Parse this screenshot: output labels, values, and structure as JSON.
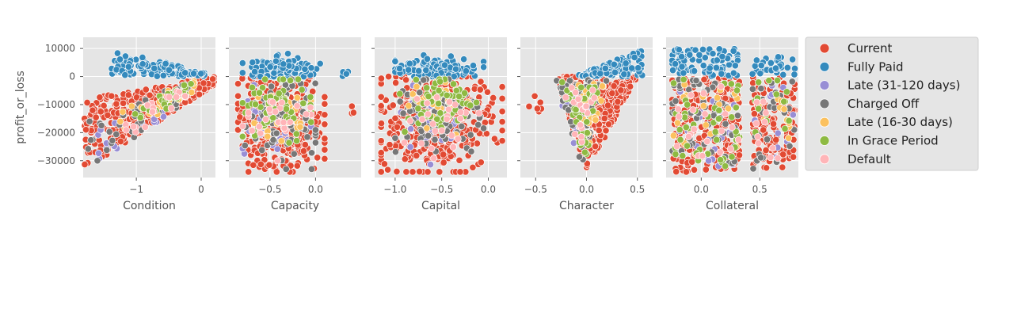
{
  "chart_data": {
    "type": "scatter",
    "title": "",
    "ylabel": "profit_or_loss",
    "ylim": [
      -36000,
      14000
    ],
    "yticks": [
      10000,
      0,
      -10000,
      -20000,
      -30000
    ],
    "ytick_labels": [
      "10000",
      "0",
      "−10000",
      "−20000",
      "−30000"
    ],
    "grid": true,
    "legend_position": "right",
    "series": [
      {
        "name": "Current",
        "color": "#E24A33"
      },
      {
        "name": "Fully Paid",
        "color": "#348ABD"
      },
      {
        "name": "Late (31-120 days)",
        "color": "#988ED5"
      },
      {
        "name": "Charged Off",
        "color": "#777777"
      },
      {
        "name": "Late (16-30 days)",
        "color": "#FBC15E"
      },
      {
        "name": "In Grace Period",
        "color": "#8EBA42"
      },
      {
        "name": "Default",
        "color": "#FFB5B8"
      }
    ],
    "panels": [
      {
        "xlabel": "Condition",
        "xlim": [
          -1.82,
          0.22
        ],
        "xticks": [
          -1,
          0
        ],
        "xtick_labels": [
          "−1",
          "0"
        ],
        "clusters": [
          {
            "series": "Fully Paid",
            "count": 120,
            "x_range": [
              -1.75,
              0.05
            ],
            "y_range": [
              0,
              11000
            ],
            "shape": "cap",
            "anchor_x": -1.4,
            "anchor_y": 9000,
            "end_x": 0.05,
            "end_y": 1500
          },
          {
            "series": "Current",
            "count": 380,
            "x_range": [
              -1.8,
              0.2
            ],
            "y_range": [
              -33000,
              0
            ],
            "shape": "wedge",
            "low_left": -33000,
            "high_left": -8000,
            "low_right": -3000,
            "high_right": 0
          },
          {
            "series": "Charged Off",
            "count": 45,
            "x_range": [
              -1.75,
              -0.2
            ],
            "y_range": [
              -33000,
              -3000
            ],
            "shape": "wedge",
            "low_left": -33000,
            "high_left": -15000,
            "low_right": -10000,
            "high_right": -2000
          },
          {
            "series": "In Grace Period",
            "count": 30,
            "x_range": [
              -1.1,
              -0.1
            ],
            "y_range": [
              -20000,
              -1000
            ],
            "shape": "wedge",
            "low_left": -20000,
            "high_left": -12000,
            "low_right": -5000,
            "high_right": -1000
          },
          {
            "series": "Late (16-30 days)",
            "count": 22,
            "x_range": [
              -1.3,
              -0.1
            ],
            "y_range": [
              -22000,
              -1000
            ],
            "shape": "wedge",
            "low_left": -22000,
            "high_left": -12000,
            "low_right": -6000,
            "high_right": -1000
          },
          {
            "series": "Default",
            "count": 20,
            "x_range": [
              -1.3,
              -0.2
            ],
            "y_range": [
              -25000,
              -3000
            ],
            "shape": "wedge",
            "low_left": -25000,
            "high_left": -15000,
            "low_right": -8000,
            "high_right": -3000
          },
          {
            "series": "Late (31-120 days)",
            "count": 15,
            "x_range": [
              -1.7,
              -0.5
            ],
            "y_range": [
              -32000,
              -8000
            ],
            "shape": "wedge",
            "low_left": -32000,
            "high_left": -20000,
            "low_right": -18000,
            "high_right": -8000
          }
        ]
      },
      {
        "xlabel": "Capacity",
        "xlim": [
          -0.95,
          0.5
        ],
        "xticks": [
          -0.5,
          0
        ],
        "xtick_labels": [
          "−0.5",
          "0.0"
        ],
        "clusters": [
          {
            "series": "Fully Paid",
            "count": 130,
            "x_range": [
              -0.8,
              0.05
            ],
            "y_range": [
              0,
              10000
            ],
            "shape": "blob",
            "cx": -0.38,
            "cy": 2500,
            "rx": 0.42,
            "ry": 4000
          },
          {
            "series": "Fully Paid",
            "count": 4,
            "x_range": [
              0.2,
              0.4
            ],
            "y_range": [
              0,
              2000
            ],
            "shape": "blob",
            "cx": 0.3,
            "cy": 1000,
            "rx": 0.1,
            "ry": 900
          },
          {
            "series": "Current",
            "count": 420,
            "x_range": [
              -0.85,
              0.1
            ],
            "y_range": [
              -34000,
              0
            ],
            "shape": "blob",
            "cx": -0.38,
            "cy": -16000,
            "rx": 0.46,
            "ry": 17000
          },
          {
            "series": "Current",
            "count": 3,
            "x_range": [
              0.38,
              0.45
            ],
            "y_range": [
              -14000,
              -9000
            ],
            "shape": "blob",
            "cx": 0.41,
            "cy": -11500,
            "rx": 0.04,
            "ry": 2500
          },
          {
            "series": "Charged Off",
            "count": 80,
            "x_range": [
              -0.8,
              0.0
            ],
            "y_range": [
              -33000,
              -1000
            ],
            "shape": "blob",
            "cx": -0.4,
            "cy": -16000,
            "rx": 0.4,
            "ry": 15000
          },
          {
            "series": "In Grace Period",
            "count": 55,
            "x_range": [
              -0.8,
              -0.05
            ],
            "y_range": [
              -33000,
              -1000
            ],
            "shape": "blob",
            "cx": -0.4,
            "cy": -10000,
            "rx": 0.38,
            "ry": 10000
          },
          {
            "series": "Late (16-30 days)",
            "count": 30,
            "x_range": [
              -0.8,
              -0.05
            ],
            "y_range": [
              -30000,
              -2000
            ],
            "shape": "blob",
            "cx": -0.4,
            "cy": -14000,
            "rx": 0.38,
            "ry": 12000
          },
          {
            "series": "Late (31-120 days)",
            "count": 35,
            "x_range": [
              -0.8,
              -0.05
            ],
            "y_range": [
              -31000,
              -3000
            ],
            "shape": "blob",
            "cx": -0.45,
            "cy": -17000,
            "rx": 0.35,
            "ry": 13000
          },
          {
            "series": "Default",
            "count": 25,
            "x_range": [
              -0.8,
              -0.05
            ],
            "y_range": [
              -30000,
              -3000
            ],
            "shape": "blob",
            "cx": -0.4,
            "cy": -16000,
            "rx": 0.38,
            "ry": 13000
          }
        ]
      },
      {
        "xlabel": "Capital",
        "xlim": [
          -1.22,
          0.2
        ],
        "xticks": [
          -1,
          -0.5,
          0
        ],
        "xtick_labels": [
          "−1.0",
          "−0.5",
          "0.0"
        ],
        "clusters": [
          {
            "series": "Fully Paid",
            "count": 140,
            "x_range": [
              -1.0,
              -0.05
            ],
            "y_range": [
              0,
              11000
            ],
            "shape": "blob",
            "cx": -0.55,
            "cy": 2500,
            "rx": 0.48,
            "ry": 4000
          },
          {
            "series": "Current",
            "count": 460,
            "x_range": [
              -1.15,
              0.15
            ],
            "y_range": [
              -34000,
              0
            ],
            "shape": "blob",
            "cx": -0.55,
            "cy": -16000,
            "rx": 0.62,
            "ry": 17000
          },
          {
            "series": "Charged Off",
            "count": 85,
            "x_range": [
              -1.0,
              -0.05
            ],
            "y_range": [
              -33000,
              -1000
            ],
            "shape": "blob",
            "cx": -0.55,
            "cy": -14000,
            "rx": 0.45,
            "ry": 16000
          },
          {
            "series": "In Grace Period",
            "count": 60,
            "x_range": [
              -0.95,
              -0.1
            ],
            "y_range": [
              -33000,
              -1000
            ],
            "shape": "blob",
            "cx": -0.5,
            "cy": -10000,
            "rx": 0.42,
            "ry": 11000
          },
          {
            "series": "Late (16-30 days)",
            "count": 30,
            "x_range": [
              -0.95,
              -0.1
            ],
            "y_range": [
              -28000,
              -2000
            ],
            "shape": "blob",
            "cx": -0.55,
            "cy": -12000,
            "rx": 0.42,
            "ry": 12000
          },
          {
            "series": "Late (31-120 days)",
            "count": 35,
            "x_range": [
              -0.95,
              -0.1
            ],
            "y_range": [
              -32000,
              -3000
            ],
            "shape": "blob",
            "cx": -0.55,
            "cy": -16000,
            "rx": 0.42,
            "ry": 14000
          },
          {
            "series": "Default",
            "count": 25,
            "x_range": [
              -0.95,
              -0.1
            ],
            "y_range": [
              -30000,
              -3000
            ],
            "shape": "blob",
            "cx": -0.55,
            "cy": -16000,
            "rx": 0.42,
            "ry": 13000
          }
        ]
      },
      {
        "xlabel": "Character",
        "xlim": [
          -0.65,
          0.65
        ],
        "xticks": [
          -0.5,
          0,
          0.5
        ],
        "xtick_labels": [
          "−0.5",
          "0.0",
          "0.5"
        ],
        "clusters": [
          {
            "series": "Fully Paid",
            "count": 120,
            "x_range": [
              -0.1,
              0.6
            ],
            "y_range": [
              0,
              11000
            ],
            "shape": "cap",
            "anchor_x": -0.05,
            "anchor_y": 1000,
            "end_x": 0.55,
            "end_y": 10000
          },
          {
            "series": "Current",
            "count": 380,
            "x_range": [
              -0.6,
              0.5
            ],
            "y_range": [
              -34000,
              0
            ],
            "shape": "vcone",
            "apex_x": 0.0,
            "apex_y": -34000,
            "top_left": -0.3,
            "top_right": 0.5,
            "top_y": 0
          },
          {
            "series": "Current",
            "count": 6,
            "x_range": [
              -0.6,
              -0.35
            ],
            "y_range": [
              -15000,
              -7000
            ],
            "shape": "blob",
            "cx": -0.5,
            "cy": -10000,
            "rx": 0.1,
            "ry": 3500
          },
          {
            "series": "Charged Off",
            "count": 60,
            "x_range": [
              -0.3,
              0.2
            ],
            "y_range": [
              -33000,
              -1000
            ],
            "shape": "vcone",
            "apex_x": -0.05,
            "apex_y": -33000,
            "top_left": -0.3,
            "top_right": 0.2,
            "top_y": -1000
          },
          {
            "series": "In Grace Period",
            "count": 45,
            "x_range": [
              -0.3,
              0.2
            ],
            "y_range": [
              -33000,
              -1000
            ],
            "shape": "vcone",
            "apex_x": -0.02,
            "apex_y": -32000,
            "top_left": -0.25,
            "top_right": 0.15,
            "top_y": -2000
          },
          {
            "series": "Late (16-30 days)",
            "count": 28,
            "x_range": [
              -0.3,
              0.2
            ],
            "y_range": [
              -28000,
              -2000
            ],
            "shape": "vcone",
            "apex_x": 0.0,
            "apex_y": -28000,
            "top_left": -0.25,
            "top_right": 0.2,
            "top_y": -2000
          },
          {
            "series": "Late (31-120 days)",
            "count": 25,
            "x_range": [
              -0.3,
              0.1
            ],
            "y_range": [
              -33000,
              -3000
            ],
            "shape": "vcone",
            "apex_x": -0.05,
            "apex_y": -33000,
            "top_left": -0.3,
            "top_right": 0.1,
            "top_y": -3000
          },
          {
            "series": "Default",
            "count": 20,
            "x_range": [
              -0.3,
              0.15
            ],
            "y_range": [
              -30000,
              -3000
            ],
            "shape": "vcone",
            "apex_x": -0.05,
            "apex_y": -30000,
            "top_left": -0.25,
            "top_right": 0.15,
            "top_y": -3000
          }
        ]
      },
      {
        "xlabel": "Collateral",
        "xlim": [
          -0.3,
          0.83
        ],
        "xticks": [
          0,
          0.5
        ],
        "xtick_labels": [
          "0.0",
          "0.5"
        ],
        "clusters": [
          {
            "series": "Fully Paid",
            "count": 90,
            "x_range": [
              -0.25,
              0.33
            ],
            "y_range": [
              0,
              10000
            ],
            "shape": "box"
          },
          {
            "series": "Fully Paid",
            "count": 35,
            "x_range": [
              0.43,
              0.8
            ],
            "y_range": [
              0,
              7000
            ],
            "shape": "box"
          },
          {
            "series": "Current",
            "count": 260,
            "x_range": [
              -0.25,
              0.33
            ],
            "y_range": [
              -34000,
              0
            ],
            "shape": "box"
          },
          {
            "series": "Current",
            "count": 140,
            "x_range": [
              0.43,
              0.8
            ],
            "y_range": [
              -33000,
              0
            ],
            "shape": "box"
          },
          {
            "series": "Charged Off",
            "count": 60,
            "x_range": [
              -0.25,
              0.33
            ],
            "y_range": [
              -33000,
              -1000
            ],
            "shape": "box"
          },
          {
            "series": "Charged Off",
            "count": 25,
            "x_range": [
              0.43,
              0.8
            ],
            "y_range": [
              -33000,
              -1000
            ],
            "shape": "box"
          },
          {
            "series": "In Grace Period",
            "count": 45,
            "x_range": [
              -0.25,
              0.33
            ],
            "y_range": [
              -33000,
              -1000
            ],
            "shape": "box"
          },
          {
            "series": "In Grace Period",
            "count": 15,
            "x_range": [
              0.43,
              0.8
            ],
            "y_range": [
              -20000,
              -1000
            ],
            "shape": "box"
          },
          {
            "series": "Late (16-30 days)",
            "count": 22,
            "x_range": [
              -0.25,
              0.33
            ],
            "y_range": [
              -28000,
              -2000
            ],
            "shape": "box"
          },
          {
            "series": "Late (16-30 days)",
            "count": 10,
            "x_range": [
              0.43,
              0.8
            ],
            "y_range": [
              -25000,
              -2000
            ],
            "shape": "box"
          },
          {
            "series": "Late (31-120 days)",
            "count": 25,
            "x_range": [
              -0.25,
              0.33
            ],
            "y_range": [
              -32000,
              -3000
            ],
            "shape": "box"
          },
          {
            "series": "Late (31-120 days)",
            "count": 10,
            "x_range": [
              0.43,
              0.8
            ],
            "y_range": [
              -30000,
              -3000
            ],
            "shape": "box"
          },
          {
            "series": "Default",
            "count": 20,
            "x_range": [
              -0.25,
              0.33
            ],
            "y_range": [
              -30000,
              -3000
            ],
            "shape": "box"
          },
          {
            "series": "Default",
            "count": 10,
            "x_range": [
              0.43,
              0.8
            ],
            "y_range": [
              -30000,
              -3000
            ],
            "shape": "box"
          }
        ]
      }
    ]
  }
}
